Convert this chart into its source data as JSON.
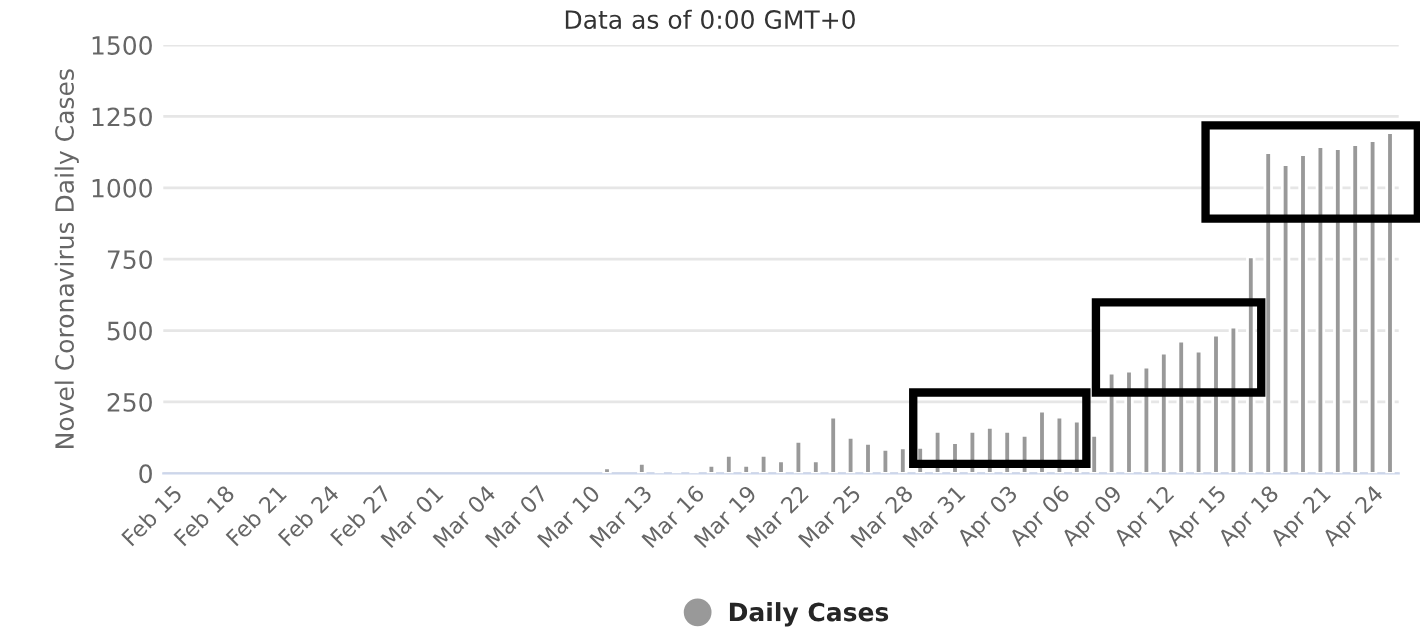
{
  "chart_data": {
    "type": "bar",
    "title": "Data as of 0:00 GMT+0",
    "ylabel": "Novel Coronavirus Daily Cases",
    "categories": [
      "Feb 15",
      null,
      null,
      "Feb 18",
      null,
      null,
      "Feb 21",
      null,
      null,
      "Feb 24",
      null,
      null,
      "Feb 27",
      null,
      null,
      "Mar 01",
      null,
      null,
      "Mar 04",
      null,
      null,
      "Mar 07",
      null,
      null,
      "Mar 10",
      null,
      null,
      "Mar 13",
      null,
      null,
      "Mar 16",
      null,
      null,
      "Mar 19",
      null,
      null,
      "Mar 22",
      null,
      null,
      "Mar 25",
      null,
      null,
      "Mar 28",
      null,
      null,
      "Mar 31",
      null,
      null,
      "Apr 03",
      null,
      null,
      "Apr 06",
      null,
      null,
      "Apr 09",
      null,
      null,
      "Apr 12",
      null,
      null,
      "Apr 15",
      null,
      null,
      "Apr 18",
      null,
      null,
      "Apr 21",
      null,
      null,
      "Apr 24",
      null
    ],
    "series": [
      {
        "name": "Daily Cases",
        "color": "#999999",
        "values": [
          null,
          null,
          null,
          null,
          null,
          null,
          null,
          null,
          null,
          null,
          null,
          null,
          null,
          null,
          null,
          null,
          null,
          null,
          null,
          null,
          null,
          null,
          null,
          null,
          null,
          19,
          null,
          35,
          7,
          7,
          7,
          28,
          63,
          28,
          63,
          44,
          112,
          44,
          197,
          126,
          105,
          84,
          89,
          91,
          147,
          108,
          147,
          161,
          147,
          133,
          218,
          197,
          183,
          133,
          351,
          358,
          372,
          421,
          463,
          428,
          484,
          512,
          758,
          1123,
          1081,
          1116,
          1144,
          1137,
          1151,
          1165,
          1193
        ]
      }
    ],
    "ylim": [
      0,
      1500
    ],
    "yticks": [
      0,
      250,
      500,
      750,
      1000,
      1250,
      1500
    ],
    "grid": "y",
    "legend": "bottom"
  }
}
